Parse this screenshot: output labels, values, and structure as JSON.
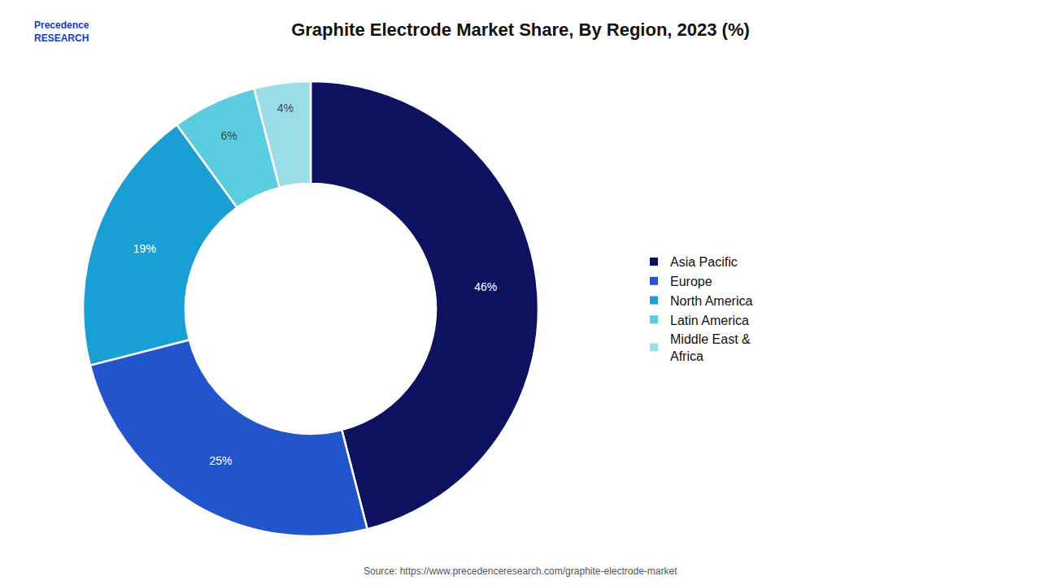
{
  "chart_data": {
    "type": "pie",
    "title": "Graphite Electrode Market Share, By Region, 2023 (%)",
    "categories": [
      "Asia Pacific",
      "Europe",
      "North America",
      "Latin America",
      "Middle East &\nAfrica"
    ],
    "values": [
      46,
      25,
      19,
      6,
      4
    ],
    "value_labels": [
      "46%",
      "25%",
      "19%",
      "6%",
      "4%"
    ],
    "colors": [
      "#0d1260",
      "#2255cc",
      "#1a9fd4",
      "#5bcde0",
      "#9adce8"
    ],
    "data_labels": true,
    "legend": "right",
    "annotations": [
      "Precedence\nRESEARCH",
      "Source: https://www.precedenceresearch.com/graphite-electrode-market"
    ]
  }
}
